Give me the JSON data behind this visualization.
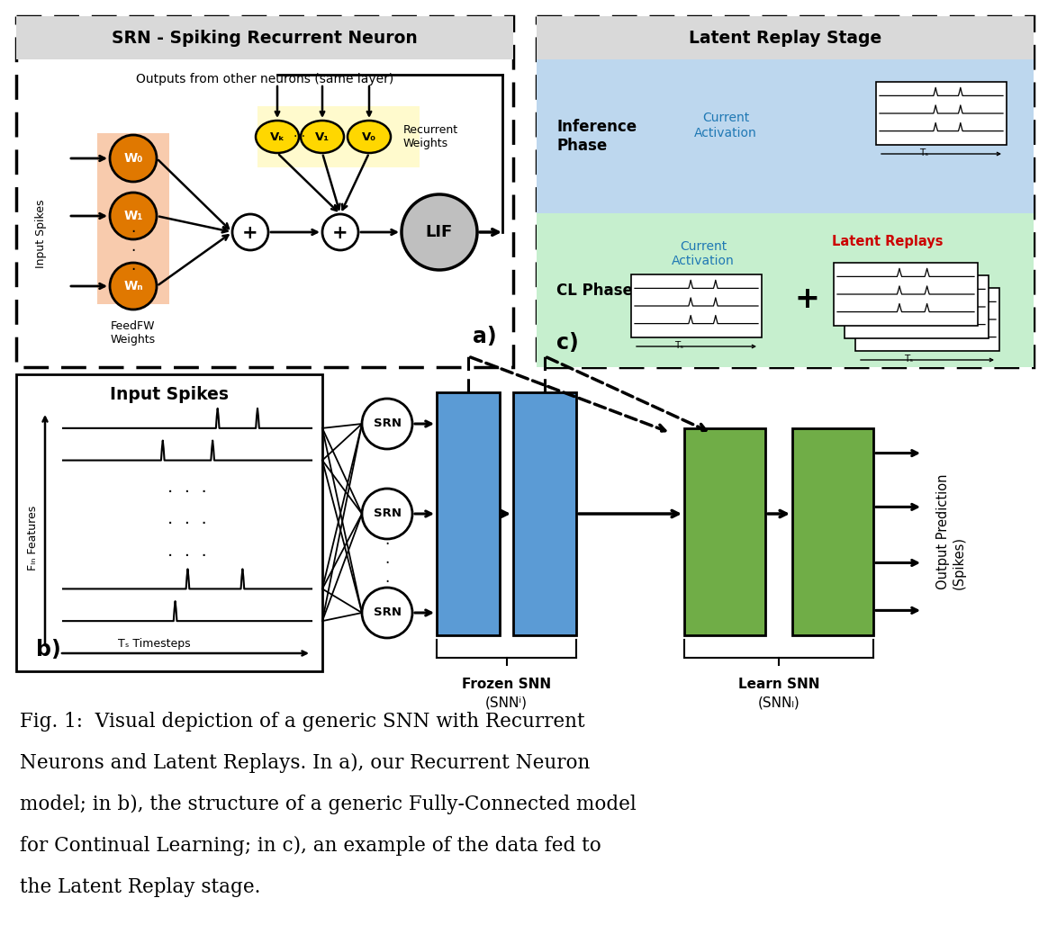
{
  "fig_width": 11.64,
  "fig_height": 10.58,
  "bg_color": "#ffffff",
  "panel_a_title": "SRN - Spiking Recurrent Neuron",
  "panel_a_subtitle": "Outputs from other neurons (same layer)",
  "panel_c_title": "Latent Replay Stage",
  "panel_b_title": "Input Spikes",
  "frozen_label1": "Frozen SNN",
  "frozen_label2": "(SNNⁱ)",
  "learn_label1": "Learn SNN",
  "learn_label2": "(SNNₗ)",
  "output_label": "Output Prediction\n(Spikes)",
  "feedfw_label": "FeedFW\nWeights",
  "recurrent_label": "Recurrent\nWeights",
  "ts_label": "Tₛ Timesteps",
  "fin_label": "Fᵢₙ Features",
  "inference_label": "Inference\nPhase",
  "cl_label": "CL Phase",
  "current_activation": "Current\nActivation",
  "latent_replays": "Latent Replays",
  "caption_line1": "Fig. 1:  Visual depiction of a generic SNN with Recurrent",
  "caption_line2": "Neurons and Latent Replays. In a), our Recurrent Neuron",
  "caption_line3": "model; in b), the structure of a generic Fully-Connected model",
  "caption_line4": "for Continual Learning; in c), an example of the data fed to",
  "caption_line5": "the Latent Replay stage.",
  "orange_node": "#E07800",
  "yellow_node": "#FFD700",
  "blue_block": "#5B9BD5",
  "green_block": "#70AD47",
  "blue_bg": "#BDD7EE",
  "green_bg": "#C6EFCE",
  "gray_header": "#D9D9D9",
  "feedfw_bg": "#F8CBAD",
  "recurrent_bg": "#FFFACD",
  "lif_gray": "#BFBFBF"
}
